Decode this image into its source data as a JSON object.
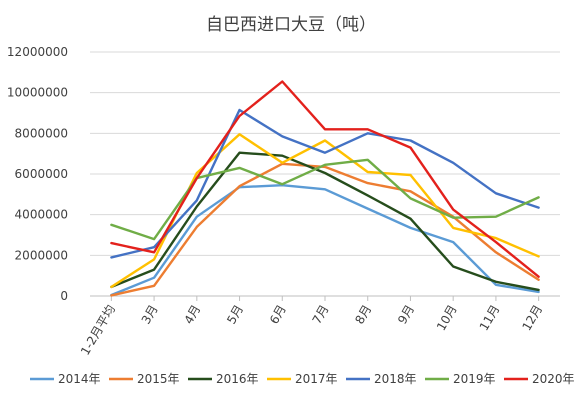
{
  "chart_data": {
    "type": "line",
    "title": "自巴西进口大豆（吨）",
    "categories": [
      "1-2月平均",
      "3月",
      "4月",
      "5月",
      "6月",
      "7月",
      "8月",
      "9月",
      "10月",
      "11月",
      "12月"
    ],
    "ylim": [
      0,
      12000000
    ],
    "yticks": [
      0,
      2000000,
      4000000,
      6000000,
      8000000,
      10000000,
      12000000
    ],
    "ytick_labels": [
      "0",
      "2000000",
      "4000000",
      "6000000",
      "8000000",
      "10000000",
      "12000000"
    ],
    "grid": "horizontal",
    "legend_position": "bottom",
    "series": [
      {
        "name": "2014年",
        "color": "#5B9BD5",
        "values": [
          50000,
          900000,
          3900000,
          5350000,
          5450000,
          5250000,
          4300000,
          3350000,
          2650000,
          550000,
          200000
        ]
      },
      {
        "name": "2015年",
        "color": "#ED7D31",
        "values": [
          30000,
          500000,
          3400000,
          5400000,
          6500000,
          6350000,
          5550000,
          5150000,
          3900000,
          2150000,
          800000
        ]
      },
      {
        "name": "2016年",
        "color": "#264D1C",
        "values": [
          450000,
          1300000,
          4400000,
          7050000,
          6900000,
          6050000,
          4950000,
          3800000,
          1450000,
          700000,
          300000
        ]
      },
      {
        "name": "2017年",
        "color": "#FFC000",
        "values": [
          450000,
          1800000,
          6050000,
          7950000,
          6550000,
          7650000,
          6100000,
          5950000,
          3350000,
          2850000,
          1950000
        ]
      },
      {
        "name": "2018年",
        "color": "#4472C4",
        "values": [
          1900000,
          2400000,
          4700000,
          9150000,
          7850000,
          7050000,
          8000000,
          7650000,
          6550000,
          5050000,
          4350000
        ]
      },
      {
        "name": "2019年",
        "color": "#70AD47",
        "values": [
          3500000,
          2800000,
          5800000,
          6300000,
          5500000,
          6450000,
          6700000,
          4800000,
          3850000,
          3900000,
          4850000
        ]
      },
      {
        "name": "2020年",
        "color": "#E3211C",
        "values": [
          2600000,
          2150000,
          5800000,
          8850000,
          10550000,
          8200000,
          8200000,
          7300000,
          4250000,
          2650000,
          950000
        ]
      }
    ]
  }
}
